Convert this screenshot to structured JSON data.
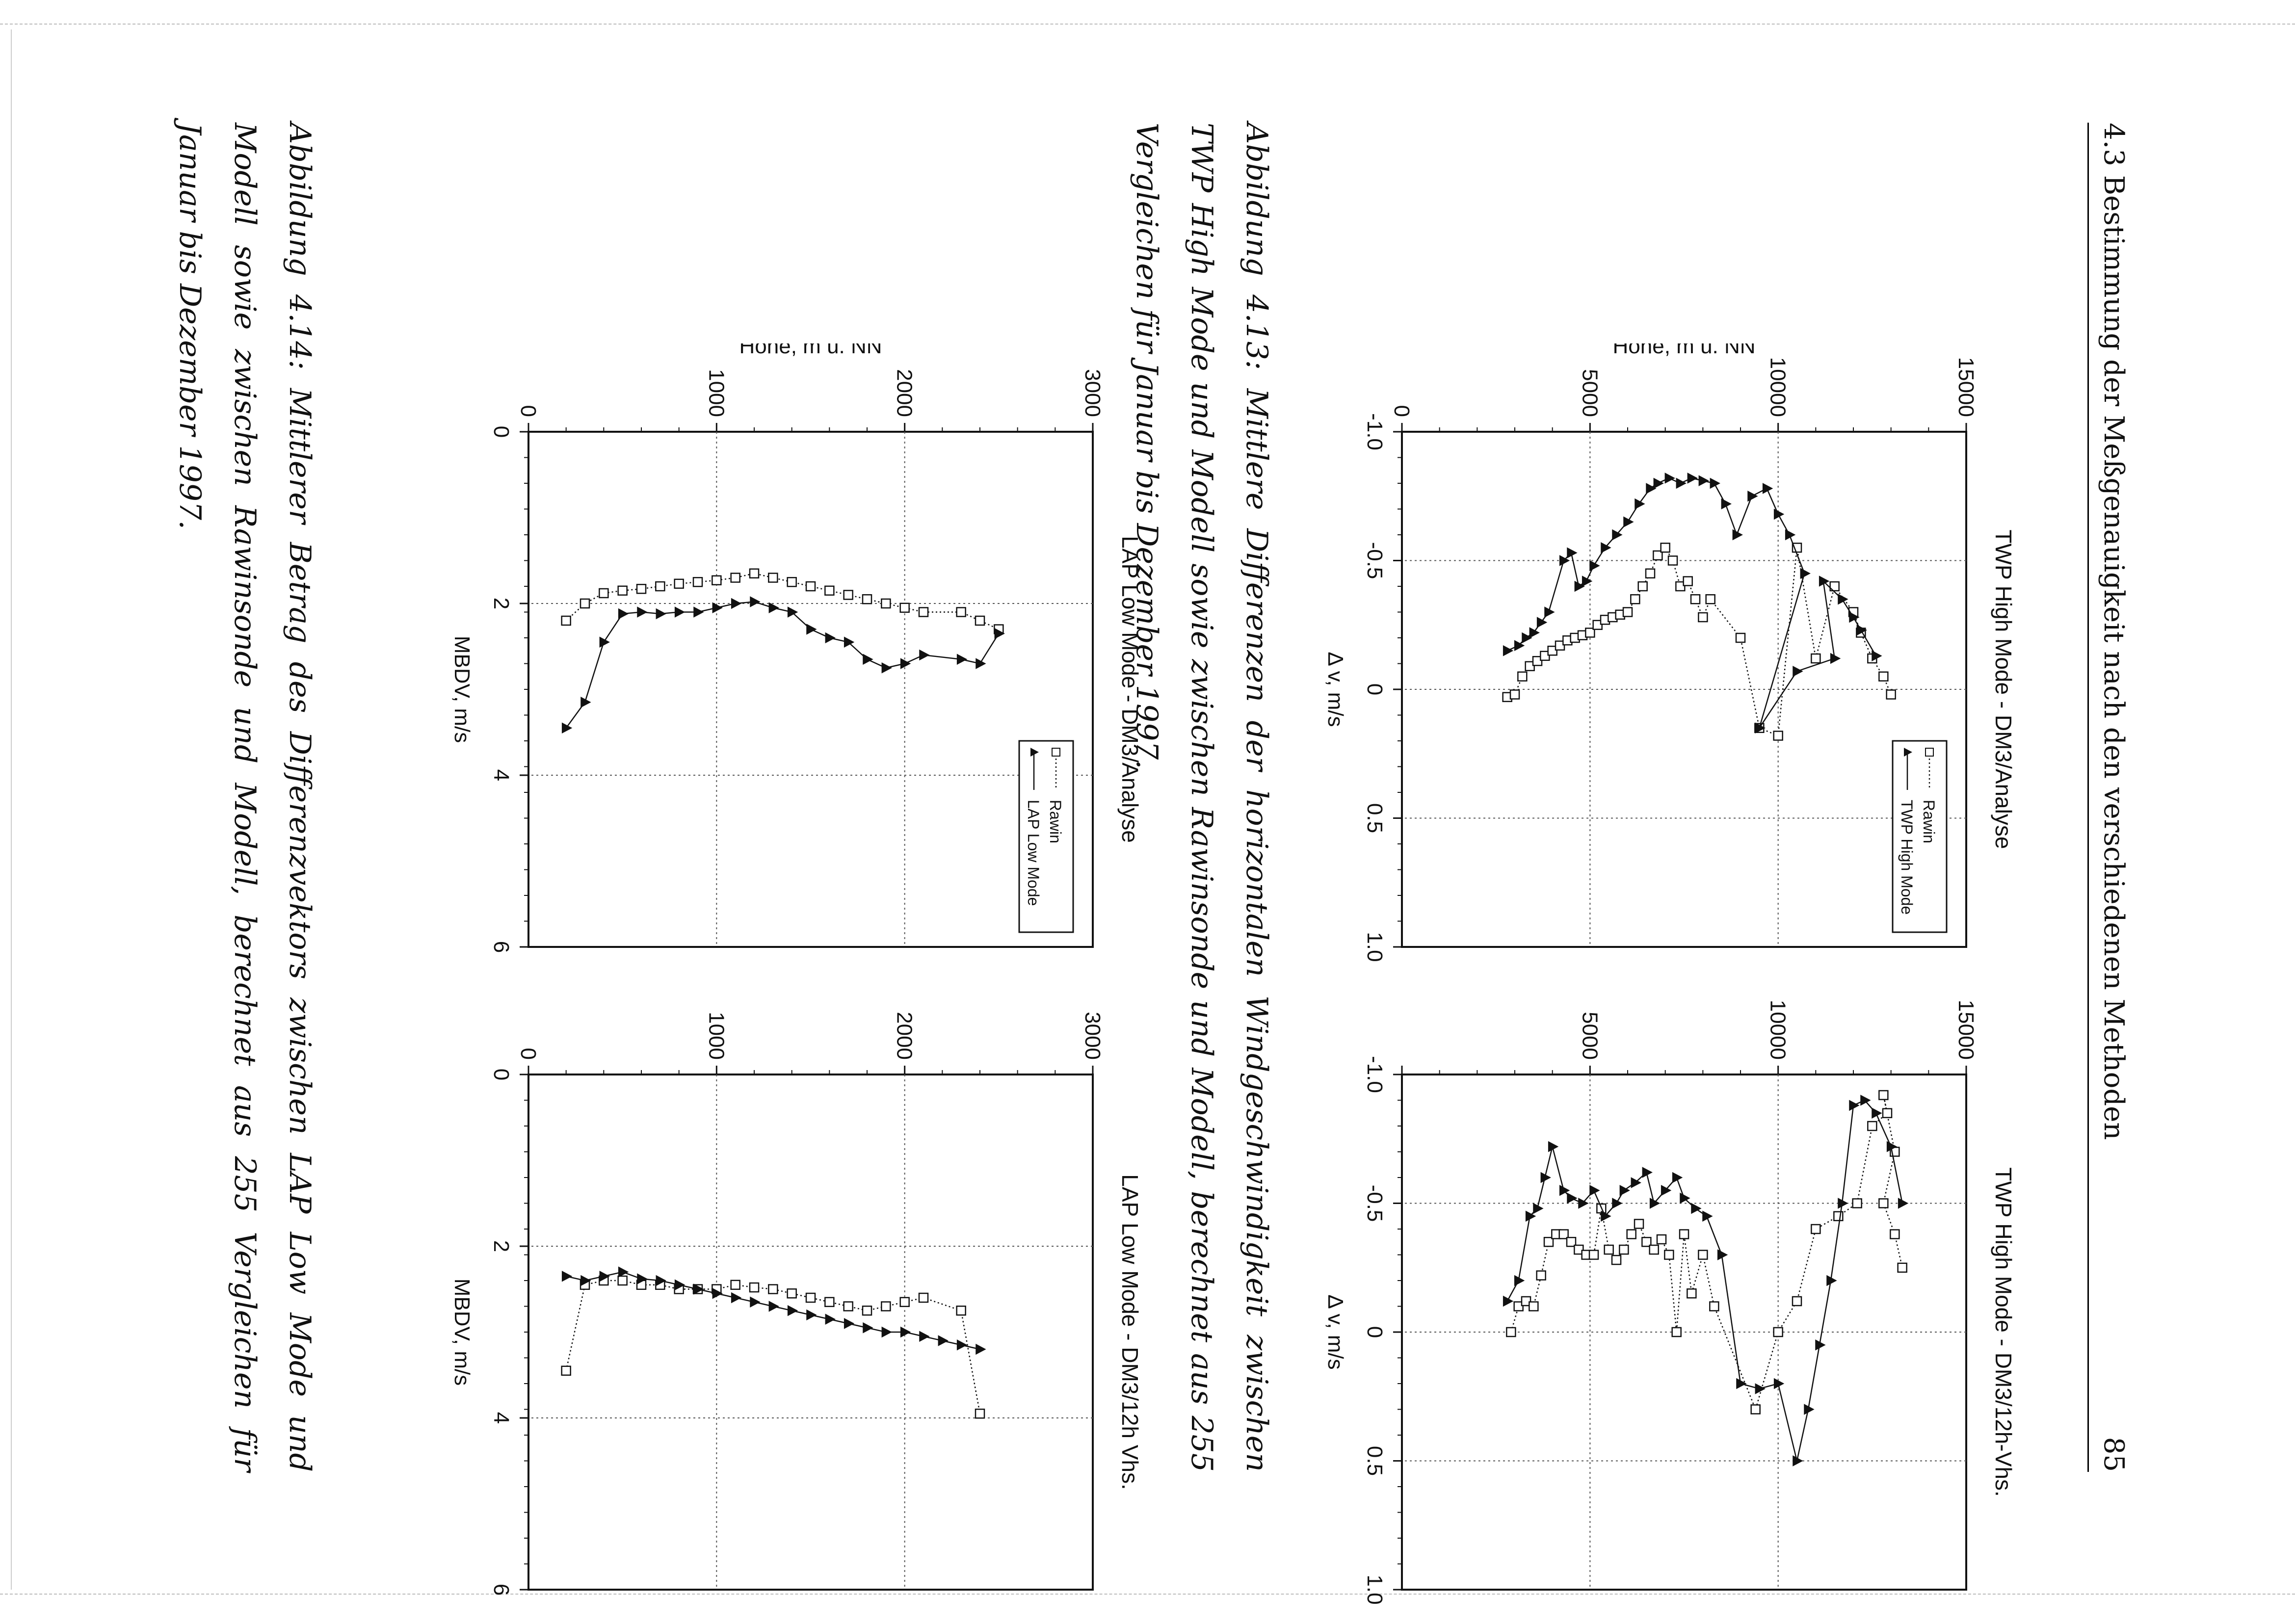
{
  "header": {
    "title": "4.3 Bestimmung der Meßgenauigkeit nach den verschiedenen Methoden",
    "page_number": "85"
  },
  "captions": {
    "fig_4_13": "Abbildung 4.13: Mittlere Differenzen der horizontalen Windgeschwindigkeit zwischen TWP High Mode und Modell sowie zwischen Rawinsonde und Modell, berechnet aus 255 Vergleichen für Januar bis Dezember 1997.",
    "fig_4_14": "Abbildung 4.14: Mittlerer Betrag des Differenzvektors zwischen LAP Low Mode und Modell sowie zwischen Rawinsonde und Modell, berechnet aus 255 Vergleichen für Januar bis Dezember 1997."
  },
  "colors": {
    "ink": "#111111",
    "grid": "#555555"
  },
  "chart_data": [
    {
      "type": "line",
      "title": "TWP High Mode - DM3/Analyse",
      "xlabel": "Δ v, m/s",
      "ylabel": "Höhe, m ü. NN",
      "xlim": [
        -1.0,
        1.0
      ],
      "ylim": [
        0,
        15000
      ],
      "xticks": [
        "-1.0",
        "-0.5",
        "0",
        "0.5",
        "1.0"
      ],
      "yticks": [
        "0",
        "5000",
        "10000",
        "15000"
      ],
      "legend": [
        "Rawin",
        "TWP High Mode"
      ],
      "series": [
        {
          "name": "Rawin",
          "x": [
            0.03,
            0.02,
            -0.05,
            -0.09,
            -0.11,
            -0.13,
            -0.15,
            -0.17,
            -0.19,
            -0.2,
            -0.21,
            -0.22,
            -0.25,
            -0.27,
            -0.28,
            -0.29,
            -0.3,
            -0.35,
            -0.4,
            -0.45,
            -0.52,
            -0.55,
            -0.5,
            -0.4,
            -0.42,
            -0.35,
            -0.28,
            -0.35,
            -0.2,
            0.15,
            0.18,
            -0.55,
            -0.12,
            -0.4,
            -0.3,
            -0.22,
            -0.12,
            -0.05,
            0.02
          ],
          "y": [
            2800,
            3000,
            3200,
            3400,
            3600,
            3800,
            4000,
            4200,
            4400,
            4600,
            4800,
            5000,
            5200,
            5400,
            5600,
            5800,
            6000,
            6200,
            6400,
            6600,
            6800,
            7000,
            7200,
            7400,
            7600,
            7800,
            8000,
            8200,
            9000,
            9500,
            10000,
            10500,
            11000,
            11500,
            12000,
            12200,
            12500,
            12800,
            13000
          ]
        },
        {
          "name": "TWP High Mode",
          "x": [
            -0.15,
            -0.17,
            -0.2,
            -0.22,
            -0.26,
            -0.3,
            -0.5,
            -0.53,
            -0.4,
            -0.42,
            -0.48,
            -0.55,
            -0.6,
            -0.65,
            -0.72,
            -0.78,
            -0.8,
            -0.82,
            -0.8,
            -0.82,
            -0.81,
            -0.8,
            -0.72,
            -0.6,
            -0.75,
            -0.78,
            -0.68,
            -0.6,
            -0.45,
            0.15,
            -0.07,
            -0.12,
            -0.42,
            -0.35,
            -0.28,
            -0.23,
            -0.13
          ],
          "y": [
            2800,
            3100,
            3300,
            3500,
            3700,
            3900,
            4300,
            4500,
            4700,
            4900,
            5100,
            5400,
            5700,
            6000,
            6300,
            6600,
            6800,
            7100,
            7400,
            7700,
            8000,
            8300,
            8600,
            8900,
            9300,
            9700,
            10000,
            10300,
            10700,
            9500,
            10500,
            11500,
            11200,
            11700,
            12000,
            12200,
            12600
          ]
        }
      ]
    },
    {
      "type": "line",
      "title": "TWP High Mode - DM3/12h-Vhs.",
      "xlabel": "Δ v, m/s",
      "ylabel": "",
      "xlim": [
        -1.0,
        1.0
      ],
      "ylim": [
        0,
        15000
      ],
      "xticks": [
        "-1.0",
        "-0.5",
        "0",
        "0.5",
        "1.0"
      ],
      "yticks": [
        "",
        "5000",
        "10000",
        "15000"
      ],
      "series": [
        {
          "name": "Rawin",
          "x": [
            0.0,
            -0.1,
            -0.12,
            -0.1,
            -0.22,
            -0.35,
            -0.38,
            -0.38,
            -0.35,
            -0.32,
            -0.3,
            -0.3,
            -0.48,
            -0.32,
            -0.28,
            -0.32,
            -0.38,
            -0.42,
            -0.35,
            -0.32,
            -0.36,
            -0.3,
            0.0,
            -0.38,
            -0.15,
            -0.3,
            -0.1,
            0.3,
            0.0,
            -0.12,
            -0.4,
            -0.45,
            -0.5,
            -0.8,
            -0.85,
            -0.92,
            -0.7,
            -0.5,
            -0.38,
            -0.25
          ],
          "y": [
            2900,
            3100,
            3300,
            3500,
            3700,
            3900,
            4100,
            4300,
            4500,
            4700,
            4900,
            5100,
            5300,
            5500,
            5700,
            5900,
            6100,
            6300,
            6500,
            6700,
            6900,
            7100,
            7300,
            7500,
            7700,
            8000,
            8300,
            9400,
            10000,
            10500,
            11000,
            11600,
            12100,
            12500,
            12900,
            12800,
            13100,
            12800,
            13100,
            13300
          ]
        },
        {
          "name": "TWP High Mode",
          "x": [
            -0.12,
            -0.2,
            -0.45,
            -0.48,
            -0.6,
            -0.72,
            -0.55,
            -0.52,
            -0.5,
            -0.55,
            -0.45,
            -0.5,
            -0.55,
            -0.58,
            -0.62,
            -0.5,
            -0.55,
            -0.6,
            -0.52,
            -0.48,
            -0.45,
            -0.3,
            0.2,
            0.22,
            0.2,
            0.5,
            0.3,
            0.05,
            -0.2,
            -0.5,
            -0.88,
            -0.9,
            -0.85,
            -0.72,
            -0.5
          ],
          "y": [
            2800,
            3100,
            3400,
            3600,
            3800,
            4000,
            4300,
            4500,
            4800,
            5100,
            5400,
            5700,
            5900,
            6200,
            6500,
            6700,
            7000,
            7300,
            7500,
            7800,
            8100,
            8500,
            9000,
            9500,
            10000,
            10500,
            10800,
            11100,
            11400,
            11700,
            12000,
            12300,
            12600,
            13000,
            13300
          ]
        }
      ]
    },
    {
      "type": "line",
      "title": "LAP Low Mode - DM3/Analyse",
      "xlabel": "MBDV, m/s",
      "ylabel": "Höhe, m ü. NN",
      "xlim": [
        0,
        6
      ],
      "ylim": [
        0,
        3000
      ],
      "xticks": [
        "0",
        "2",
        "4",
        "6"
      ],
      "yticks": [
        "0",
        "1000",
        "2000",
        "3000"
      ],
      "legend": [
        "Rawin",
        "LAP Low Mode"
      ],
      "series": [
        {
          "name": "Rawin",
          "x": [
            2.2,
            2.0,
            1.88,
            1.85,
            1.83,
            1.8,
            1.77,
            1.75,
            1.73,
            1.7,
            1.65,
            1.7,
            1.75,
            1.8,
            1.85,
            1.9,
            1.95,
            2.0,
            2.05,
            2.1,
            2.1,
            2.2,
            2.3
          ],
          "y": [
            200,
            300,
            400,
            500,
            600,
            700,
            800,
            900,
            1000,
            1100,
            1200,
            1300,
            1400,
            1500,
            1600,
            1700,
            1800,
            1900,
            2000,
            2100,
            2300,
            2400,
            2500
          ]
        },
        {
          "name": "LAP Low Mode",
          "x": [
            3.45,
            3.15,
            2.45,
            2.12,
            2.1,
            2.12,
            2.1,
            2.1,
            2.05,
            2.0,
            1.98,
            2.05,
            2.1,
            2.3,
            2.4,
            2.45,
            2.65,
            2.75,
            2.7,
            2.6,
            2.65,
            2.7,
            2.35
          ],
          "y": [
            200,
            300,
            400,
            500,
            600,
            700,
            800,
            900,
            1000,
            1100,
            1200,
            1300,
            1400,
            1500,
            1600,
            1700,
            1800,
            1900,
            2000,
            2100,
            2300,
            2400,
            2500
          ]
        }
      ]
    },
    {
      "type": "line",
      "title": "LAP Low Mode - DM3/12h Vhs.",
      "xlabel": "MBDV, m/s",
      "ylabel": "",
      "xlim": [
        0,
        6
      ],
      "ylim": [
        0,
        3000
      ],
      "xticks": [
        "0",
        "2",
        "4",
        "6"
      ],
      "yticks": [
        "0",
        "1000",
        "2000",
        "3000"
      ],
      "series": [
        {
          "name": "Rawin",
          "x": [
            3.45,
            2.45,
            2.4,
            2.4,
            2.45,
            2.45,
            2.5,
            2.5,
            2.5,
            2.45,
            2.48,
            2.5,
            2.55,
            2.6,
            2.65,
            2.7,
            2.75,
            2.7,
            2.65,
            2.6,
            2.75,
            3.95
          ],
          "y": [
            200,
            300,
            400,
            500,
            600,
            700,
            800,
            900,
            1000,
            1100,
            1200,
            1300,
            1400,
            1500,
            1600,
            1700,
            1800,
            1900,
            2000,
            2100,
            2300,
            2400
          ]
        },
        {
          "name": "LAP Low Mode",
          "x": [
            2.35,
            2.4,
            2.35,
            2.3,
            2.38,
            2.4,
            2.45,
            2.5,
            2.55,
            2.6,
            2.65,
            2.7,
            2.75,
            2.8,
            2.85,
            2.9,
            2.95,
            3.0,
            3.0,
            3.05,
            3.1,
            3.15,
            3.2
          ],
          "y": [
            200,
            300,
            400,
            500,
            600,
            700,
            800,
            900,
            1000,
            1100,
            1200,
            1300,
            1400,
            1500,
            1600,
            1700,
            1800,
            1900,
            2000,
            2100,
            2200,
            2300,
            2400
          ]
        }
      ]
    }
  ]
}
